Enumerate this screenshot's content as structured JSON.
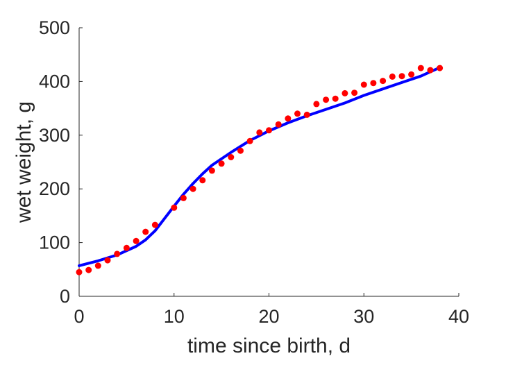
{
  "chart_data": {
    "type": "scatter",
    "xlabel": "time since birth, d",
    "ylabel": "wet weight, g",
    "xlim": [
      0,
      40
    ],
    "ylim": [
      0,
      500
    ],
    "xticks": [
      "0",
      "10",
      "20",
      "30",
      "40"
    ],
    "yticks": [
      "0",
      "100",
      "200",
      "300",
      "400",
      "500"
    ],
    "grid": false,
    "box": "left and bottom axes only",
    "series": [
      {
        "kind": "markers",
        "color": "#ff0000",
        "points": [
          [
            0,
            45
          ],
          [
            1,
            49
          ],
          [
            2,
            57
          ],
          [
            3,
            67
          ],
          [
            4,
            79
          ],
          [
            5,
            90
          ],
          [
            6,
            103
          ],
          [
            7,
            120
          ],
          [
            8,
            133
          ],
          [
            10,
            165
          ],
          [
            11,
            183
          ],
          [
            12,
            200
          ],
          [
            13,
            216
          ],
          [
            14,
            234
          ],
          [
            15,
            247
          ],
          [
            16,
            259
          ],
          [
            17,
            271
          ],
          [
            18,
            289
          ],
          [
            19,
            305
          ],
          [
            20,
            309
          ],
          [
            21,
            320
          ],
          [
            22,
            331
          ],
          [
            23,
            340
          ],
          [
            24,
            338
          ],
          [
            25,
            358
          ],
          [
            26,
            366
          ],
          [
            27,
            368
          ],
          [
            28,
            378
          ],
          [
            29,
            379
          ],
          [
            30,
            394
          ],
          [
            31,
            397
          ],
          [
            32,
            401
          ],
          [
            33,
            409
          ],
          [
            34,
            410
          ],
          [
            35,
            413
          ],
          [
            36,
            425
          ],
          [
            37,
            421
          ],
          [
            38,
            425
          ]
        ]
      },
      {
        "kind": "line",
        "color": "#0000ff",
        "points": [
          [
            0,
            57
          ],
          [
            2,
            66
          ],
          [
            4,
            77
          ],
          [
            6,
            93
          ],
          [
            7,
            105
          ],
          [
            8,
            122
          ],
          [
            9,
            145
          ],
          [
            10,
            168
          ],
          [
            11,
            190
          ],
          [
            12,
            210
          ],
          [
            13,
            228
          ],
          [
            14,
            244
          ],
          [
            16,
            268
          ],
          [
            18,
            290
          ],
          [
            20,
            308
          ],
          [
            22,
            323
          ],
          [
            24,
            336
          ],
          [
            26,
            348
          ],
          [
            28,
            360
          ],
          [
            30,
            374
          ],
          [
            32,
            386
          ],
          [
            34,
            398
          ],
          [
            36,
            410
          ],
          [
            38,
            426
          ]
        ]
      }
    ]
  }
}
